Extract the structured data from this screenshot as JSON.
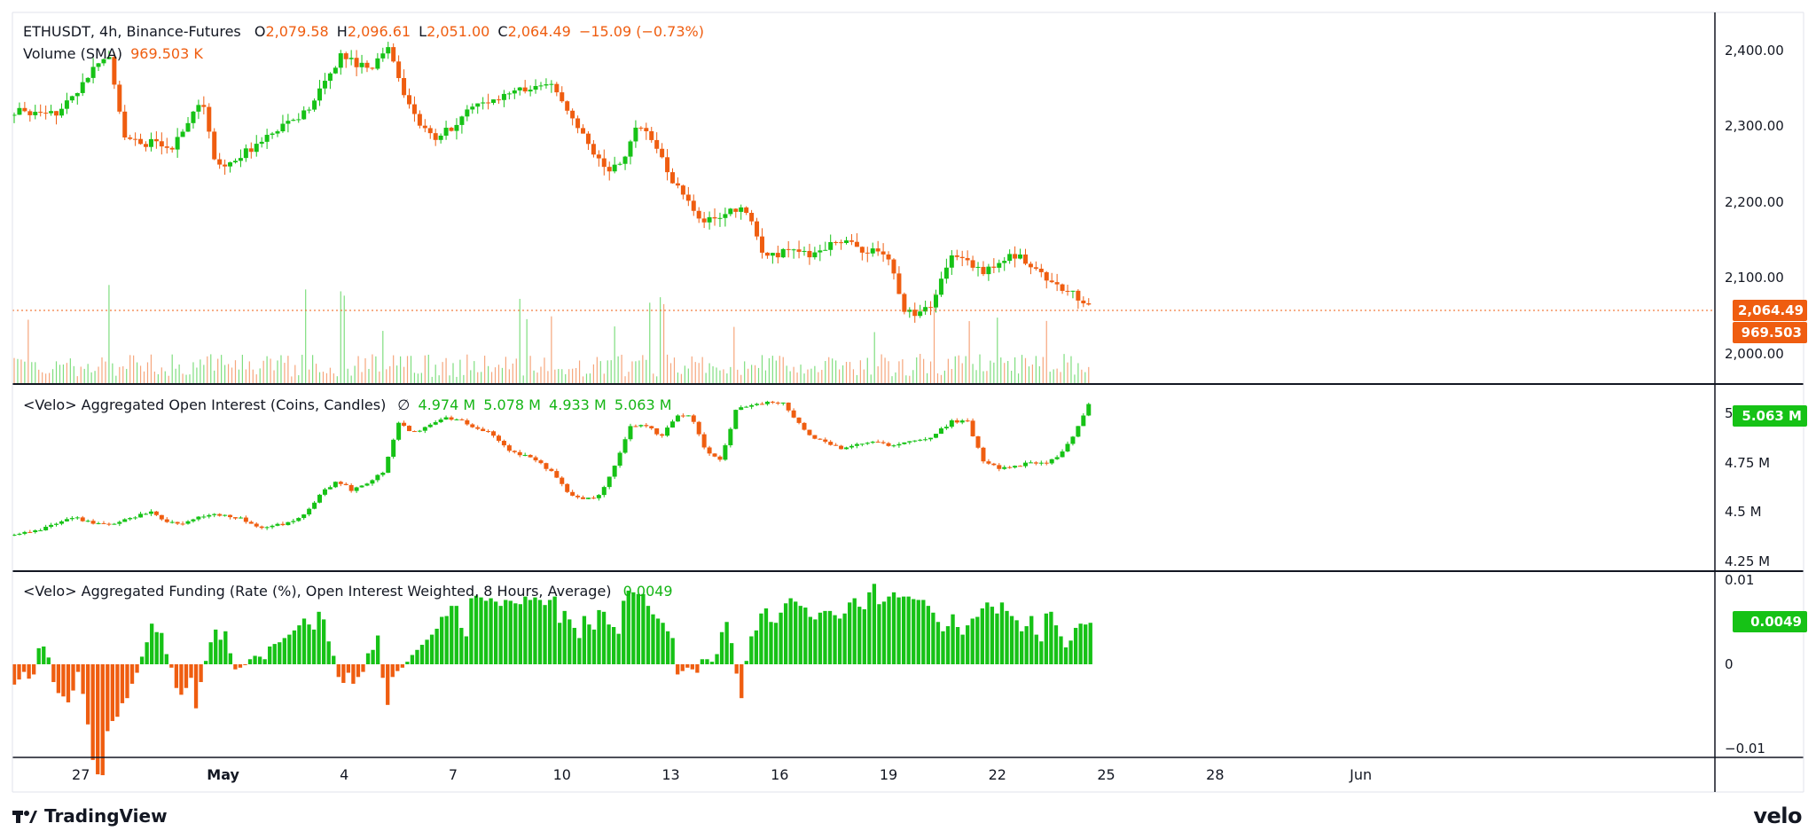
{
  "header": {
    "symbol": "ETHUSDT, 4h, Binance-Futures",
    "o_label": "O",
    "o_val": "2,079.58",
    "h_label": "H",
    "h_val": "2,096.61",
    "l_label": "L",
    "l_val": "2,051.00",
    "c_label": "C",
    "c_val": "2,064.49",
    "change": "−15.09 (−0.73%)",
    "volume_label": "Volume (SMA)",
    "volume_val": "969.503 K"
  },
  "oi_header": {
    "label": "<Velo> Aggregated Open Interest (Coins, Candles)",
    "symbol": "∅",
    "v1": "4.974 M",
    "v2": "5.078 M",
    "v3": "4.933 M",
    "v4": "5.063 M"
  },
  "funding_header": {
    "label": "<Velo> Aggregated Funding (Rate (%), Open Interest Weighted, 8 Hours, Average)",
    "value": "0.0049"
  },
  "tags": {
    "price": "2,064.49",
    "volume": "969.503 K",
    "oi": "5.063 M",
    "funding": "0.0049"
  },
  "colors": {
    "up": "#16c216",
    "down": "#ef5d10",
    "grid": "#e0e3eb",
    "divider": "#131722"
  },
  "branding": {
    "left": "TradingView",
    "right": "velo"
  },
  "chart_data": [
    {
      "type": "candlestick",
      "title": "ETHUSDT, 4h, Binance-Futures",
      "y_ticks": [
        "2,400.00",
        "2,300.00",
        "2,200.00",
        "2,100.00",
        "2,000.00"
      ],
      "y_tick_values": [
        2400,
        2300,
        2200,
        2100,
        2000
      ],
      "ylim": [
        1960,
        2450
      ],
      "last_value": 2064.49,
      "anchors": [
        2320,
        2318,
        2312,
        2322,
        2345,
        2372,
        2398,
        2290,
        2275,
        2280,
        2270,
        2300,
        2335,
        2245,
        2255,
        2268,
        2282,
        2300,
        2310,
        2325,
        2360,
        2395,
        2382,
        2380,
        2405,
        2345,
        2300,
        2282,
        2298,
        2320,
        2328,
        2338,
        2345,
        2352,
        2360,
        2340,
        2305,
        2268,
        2240,
        2255,
        2302,
        2280,
        2232,
        2212,
        2178,
        2175,
        2188,
        2190,
        2128,
        2132,
        2138,
        2128,
        2140,
        2150,
        2140,
        2134,
        2130,
        2060,
        2052,
        2070,
        2130,
        2122,
        2108,
        2118,
        2130,
        2122,
        2102,
        2087,
        2077,
        2064
      ],
      "volume_last": "969.503 K"
    },
    {
      "type": "candlestick",
      "title": "<Velo> Aggregated Open Interest (Coins, Candles)",
      "y_ticks": [
        "5 M",
        "4.75 M",
        "4.5 M",
        "4.25 M"
      ],
      "y_tick_values": [
        5.0,
        4.75,
        4.5,
        4.25
      ],
      "ylim": [
        4.2,
        5.15
      ],
      "last_value": 5.063,
      "anchors": [
        4.38,
        4.4,
        4.42,
        4.45,
        4.47,
        4.45,
        4.43,
        4.46,
        4.48,
        4.5,
        4.45,
        4.44,
        4.47,
        4.49,
        4.48,
        4.46,
        4.42,
        4.43,
        4.45,
        4.5,
        4.6,
        4.66,
        4.61,
        4.65,
        4.7,
        4.95,
        4.9,
        4.94,
        4.98,
        4.97,
        4.92,
        4.9,
        4.82,
        4.79,
        4.76,
        4.7,
        4.6,
        4.56,
        4.58,
        4.72,
        4.93,
        4.95,
        4.88,
        4.98,
        5.0,
        4.8,
        4.77,
        5.03,
        5.04,
        5.06,
        5.05,
        4.95,
        4.87,
        4.85,
        4.82,
        4.85,
        4.86,
        4.84,
        4.86,
        4.86,
        4.9,
        4.96,
        4.96,
        4.76,
        4.72,
        4.73,
        4.75,
        4.75,
        4.78,
        4.9,
        5.06
      ],
      "last": "5.063 M"
    },
    {
      "type": "bar",
      "title": "<Velo> Aggregated Funding (Rate (%), Open Interest Weighted, 8 Hours, Average)",
      "y_ticks": [
        "0.01",
        "0",
        "−0.01"
      ],
      "y_tick_values": [
        0.01,
        0,
        -0.01
      ],
      "ylim": [
        -0.011,
        0.011
      ],
      "values": [
        -0.0024,
        -0.0018,
        -0.0009,
        -0.0017,
        -0.0012,
        0.0019,
        0.0021,
        0.0008,
        -0.0021,
        -0.0034,
        -0.0038,
        -0.0045,
        -0.0031,
        -0.0009,
        -0.0035,
        -0.0071,
        -0.0113,
        -0.013,
        -0.0131,
        -0.0079,
        -0.0067,
        -0.0062,
        -0.0046,
        -0.004,
        -0.0023,
        -0.001,
        0.0009,
        0.0026,
        0.0048,
        0.0038,
        0.0037,
        0.0012,
        -0.0004,
        -0.0028,
        -0.0036,
        -0.0028,
        -0.0016,
        -0.0052,
        -0.0021,
        0.0004,
        0.0026,
        0.0041,
        0.0029,
        0.0039,
        0.0013,
        -0.0006,
        -0.0004,
        -0.0001,
        0.0006,
        0.001,
        0.0009,
        0.0006,
        0.0021,
        0.0024,
        0.0026,
        0.0031,
        0.0035,
        0.004,
        0.0046,
        0.0054,
        0.0047,
        0.0041,
        0.0062,
        0.0053,
        0.0027,
        0.001,
        -0.0015,
        -0.0022,
        -0.001,
        -0.0023,
        -0.0015,
        -0.0009,
        0.0013,
        0.0017,
        0.0034,
        -0.0016,
        -0.0048,
        -0.0015,
        -0.0008,
        -0.0004,
        0.0003,
        0.0011,
        0.0017,
        0.0023,
        0.0029,
        0.0035,
        0.0042,
        0.0056,
        0.0057,
        0.0069,
        0.0069,
        0.0043,
        0.0033,
        0.0078,
        0.0081,
        0.0079,
        0.0075,
        0.0078,
        0.0074,
        0.0069,
        0.0076,
        0.0075,
        0.0072,
        0.0071,
        0.008,
        0.0076,
        0.0079,
        0.0076,
        0.007,
        0.0076,
        0.008,
        0.0049,
        0.0063,
        0.0053,
        0.0043,
        0.0031,
        0.0057,
        0.0047,
        0.0041,
        0.0064,
        0.0062,
        0.0047,
        0.0044,
        0.0036,
        0.0075,
        0.0087,
        0.0085,
        0.0083,
        0.0083,
        0.0069,
        0.0059,
        0.0054,
        0.0049,
        0.0039,
        0.0031,
        -0.0012,
        -0.0008,
        -0.0004,
        -0.0006,
        -0.001,
        0.0006,
        0.0006,
        0.0003,
        0.0012,
        0.0038,
        0.005,
        0.0025,
        -0.0011,
        -0.004,
        0.0004,
        0.0033,
        0.004,
        0.006,
        0.0066,
        0.005,
        0.0049,
        0.0061,
        0.0072,
        0.0078,
        0.0074,
        0.0069,
        0.0067,
        0.0056,
        0.0053,
        0.0061,
        0.0063,
        0.0063,
        0.0058,
        0.0054,
        0.006,
        0.0073,
        0.0078,
        0.0068,
        0.0065,
        0.0085,
        0.0095,
        0.0071,
        0.0074,
        0.008,
        0.0085,
        0.0079,
        0.008,
        0.008,
        0.0077,
        0.0076,
        0.0076,
        0.0069,
        0.0061,
        0.005,
        0.0039,
        0.0045,
        0.0059,
        0.0044,
        0.0035,
        0.0046,
        0.0054,
        0.0056,
        0.0066,
        0.0073,
        0.0068,
        0.006,
        0.0073,
        0.0063,
        0.0057,
        0.0052,
        0.0039,
        0.0045,
        0.0057,
        0.0035,
        0.0027,
        0.006,
        0.0062,
        0.0046,
        0.0033,
        0.002,
        0.0028,
        0.0043,
        0.0048,
        0.0047,
        0.0049
      ]
    }
  ],
  "x_axis": [
    {
      "label": "27",
      "candle_index": 38
    },
    {
      "label": "May",
      "candle_index": 119
    },
    {
      "label": "4",
      "candle_index": 188
    },
    {
      "label": "7",
      "candle_index": 250
    },
    {
      "label": "10",
      "candle_index": 312
    },
    {
      "label": "13",
      "candle_index": 374
    },
    {
      "label": "16",
      "candle_index": 436
    },
    {
      "label": "19",
      "candle_index": 498
    },
    {
      "label": "22",
      "candle_index": 560
    },
    {
      "label": "25",
      "candle_index": 622
    },
    {
      "label": "28",
      "candle_index": 684
    },
    {
      "label": "Jun",
      "candle_index": 767
    }
  ]
}
